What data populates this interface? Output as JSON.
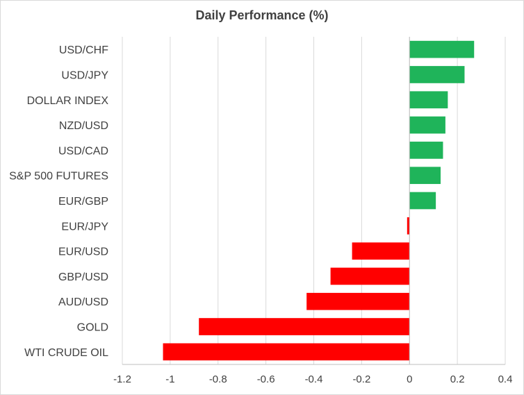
{
  "chart_data": {
    "type": "bar",
    "orientation": "horizontal",
    "title": "Daily Performance (%)",
    "xlabel": "",
    "ylabel": "",
    "xlim": [
      -1.2,
      0.4
    ],
    "x_ticks": [
      "-1.2",
      "-1",
      "-0.8",
      "-0.6",
      "-0.4",
      "-0.2",
      "0",
      "0.2",
      "0.4"
    ],
    "grid": "vertical",
    "legend": "none",
    "categories": [
      "USD/CHF",
      "USD/JPY",
      "DOLLAR INDEX",
      "NZD/USD",
      "USD/CAD",
      "S&P 500 FUTURES",
      "EUR/GBP",
      "EUR/JPY",
      "EUR/USD",
      "GBP/USD",
      "AUD/USD",
      "GOLD",
      "WTI CRUDE OIL"
    ],
    "values": [
      0.27,
      0.23,
      0.16,
      0.15,
      0.14,
      0.13,
      0.11,
      -0.01,
      -0.24,
      -0.33,
      -0.43,
      -0.88,
      -1.03
    ],
    "colors": {
      "positive": "#1fb45a",
      "negative": "#ff0000",
      "grid": "#d9d9d9",
      "axis": "#bfbfbf"
    }
  }
}
